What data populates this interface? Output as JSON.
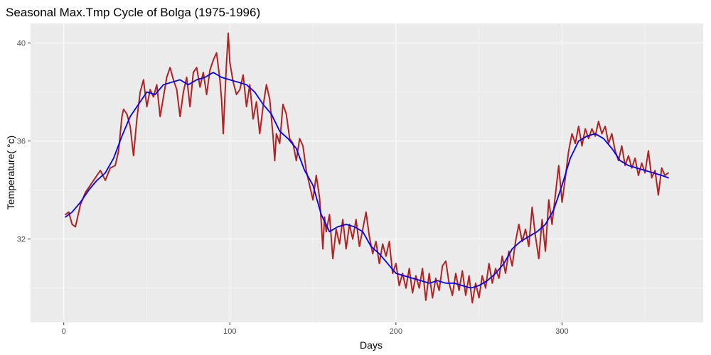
{
  "chart_data": {
    "type": "line",
    "title": "Seasonal Max.Tmp Cycle of Bolga (1975-1996)",
    "xlabel": "Days",
    "ylabel": "Temperature( °c)",
    "xlim": [
      -20,
      385
    ],
    "ylim": [
      28.6,
      40.8
    ],
    "x_ticks": [
      0,
      100,
      200,
      300
    ],
    "y_ticks": [
      32,
      36,
      40
    ],
    "grid": true,
    "series": [
      {
        "color": "#b22222",
        "role": "daily",
        "points": [
          [
            1,
            33.0
          ],
          [
            3,
            33.1
          ],
          [
            5,
            32.6
          ],
          [
            7,
            32.5
          ],
          [
            10,
            33.4
          ],
          [
            13,
            33.9
          ],
          [
            16,
            34.2
          ],
          [
            19,
            34.5
          ],
          [
            22,
            34.8
          ],
          [
            25,
            34.4
          ],
          [
            28,
            34.9
          ],
          [
            31,
            35.0
          ],
          [
            33,
            35.6
          ],
          [
            34,
            36.3
          ],
          [
            35,
            37.0
          ],
          [
            36,
            37.3
          ],
          [
            38,
            37.1
          ],
          [
            40,
            36.6
          ],
          [
            42,
            35.4
          ],
          [
            44,
            36.9
          ],
          [
            46,
            38.0
          ],
          [
            48,
            38.5
          ],
          [
            50,
            37.4
          ],
          [
            52,
            38.1
          ],
          [
            54,
            37.8
          ],
          [
            56,
            38.3
          ],
          [
            58,
            37.0
          ],
          [
            60,
            37.8
          ],
          [
            62,
            38.6
          ],
          [
            64,
            39.0
          ],
          [
            66,
            38.5
          ],
          [
            68,
            38.1
          ],
          [
            70,
            37.0
          ],
          [
            72,
            38.0
          ],
          [
            74,
            38.6
          ],
          [
            76,
            37.4
          ],
          [
            78,
            38.8
          ],
          [
            80,
            39.0
          ],
          [
            82,
            38.2
          ],
          [
            84,
            38.8
          ],
          [
            86,
            37.9
          ],
          [
            88,
            38.9
          ],
          [
            90,
            39.3
          ],
          [
            92,
            39.6
          ],
          [
            94,
            38.5
          ],
          [
            95,
            37.7
          ],
          [
            96,
            36.3
          ],
          [
            97,
            37.8
          ],
          [
            98,
            39.2
          ],
          [
            99,
            40.4
          ],
          [
            100,
            39.2
          ],
          [
            102,
            38.4
          ],
          [
            104,
            37.9
          ],
          [
            106,
            38.1
          ],
          [
            108,
            38.7
          ],
          [
            110,
            37.4
          ],
          [
            112,
            38.3
          ],
          [
            114,
            36.9
          ],
          [
            116,
            37.6
          ],
          [
            118,
            36.3
          ],
          [
            120,
            37.4
          ],
          [
            122,
            38.3
          ],
          [
            124,
            37.7
          ],
          [
            126,
            36.2
          ],
          [
            127,
            35.2
          ],
          [
            128,
            36.3
          ],
          [
            130,
            35.9
          ],
          [
            132,
            37.5
          ],
          [
            134,
            37.1
          ],
          [
            136,
            36.1
          ],
          [
            138,
            35.9
          ],
          [
            140,
            35.2
          ],
          [
            142,
            36.1
          ],
          [
            144,
            35.8
          ],
          [
            146,
            34.8
          ],
          [
            148,
            34.2
          ],
          [
            150,
            33.6
          ],
          [
            152,
            34.6
          ],
          [
            154,
            33.7
          ],
          [
            155,
            32.7
          ],
          [
            156,
            31.6
          ],
          [
            157,
            32.9
          ],
          [
            158,
            32.3
          ],
          [
            160,
            33.0
          ],
          [
            162,
            31.2
          ],
          [
            164,
            32.4
          ],
          [
            166,
            31.8
          ],
          [
            168,
            32.8
          ],
          [
            170,
            31.6
          ],
          [
            172,
            32.6
          ],
          [
            174,
            32.0
          ],
          [
            176,
            32.8
          ],
          [
            178,
            31.7
          ],
          [
            180,
            32.4
          ],
          [
            182,
            33.1
          ],
          [
            184,
            32.1
          ],
          [
            186,
            31.4
          ],
          [
            188,
            31.9
          ],
          [
            190,
            31.0
          ],
          [
            192,
            31.8
          ],
          [
            194,
            31.3
          ],
          [
            196,
            31.9
          ],
          [
            198,
            30.6
          ],
          [
            200,
            31.0
          ],
          [
            202,
            30.1
          ],
          [
            204,
            30.6
          ],
          [
            206,
            30.0
          ],
          [
            208,
            30.8
          ],
          [
            210,
            29.8
          ],
          [
            212,
            30.5
          ],
          [
            214,
            30.0
          ],
          [
            216,
            30.8
          ],
          [
            218,
            29.5
          ],
          [
            220,
            30.6
          ],
          [
            222,
            29.6
          ],
          [
            224,
            30.4
          ],
          [
            226,
            29.9
          ],
          [
            228,
            30.9
          ],
          [
            230,
            31.1
          ],
          [
            232,
            30.2
          ],
          [
            234,
            29.7
          ],
          [
            236,
            30.6
          ],
          [
            238,
            29.9
          ],
          [
            240,
            30.7
          ],
          [
            242,
            29.7
          ],
          [
            244,
            30.5
          ],
          [
            246,
            29.4
          ],
          [
            248,
            30.2
          ],
          [
            250,
            29.6
          ],
          [
            252,
            30.5
          ],
          [
            254,
            30.0
          ],
          [
            256,
            31.0
          ],
          [
            258,
            30.2
          ],
          [
            260,
            30.8
          ],
          [
            262,
            30.4
          ],
          [
            264,
            31.3
          ],
          [
            266,
            30.6
          ],
          [
            268,
            31.5
          ],
          [
            270,
            30.9
          ],
          [
            272,
            31.9
          ],
          [
            274,
            32.6
          ],
          [
            276,
            31.9
          ],
          [
            278,
            32.4
          ],
          [
            280,
            31.7
          ],
          [
            282,
            33.3
          ],
          [
            284,
            32.1
          ],
          [
            286,
            31.2
          ],
          [
            288,
            32.8
          ],
          [
            290,
            31.5
          ],
          [
            292,
            33.6
          ],
          [
            294,
            32.6
          ],
          [
            296,
            33.8
          ],
          [
            298,
            35.0
          ],
          [
            300,
            33.5
          ],
          [
            302,
            34.5
          ],
          [
            304,
            35.6
          ],
          [
            306,
            36.3
          ],
          [
            308,
            35.9
          ],
          [
            310,
            36.6
          ],
          [
            312,
            35.8
          ],
          [
            314,
            36.5
          ],
          [
            316,
            36.1
          ],
          [
            318,
            36.5
          ],
          [
            320,
            36.2
          ],
          [
            322,
            36.8
          ],
          [
            324,
            36.3
          ],
          [
            326,
            36.6
          ],
          [
            328,
            35.9
          ],
          [
            330,
            36.3
          ],
          [
            332,
            35.6
          ],
          [
            334,
            35.2
          ],
          [
            336,
            35.8
          ],
          [
            338,
            35.0
          ],
          [
            340,
            35.4
          ],
          [
            342,
            34.9
          ],
          [
            344,
            35.3
          ],
          [
            346,
            34.6
          ],
          [
            348,
            35.1
          ],
          [
            350,
            34.7
          ],
          [
            352,
            35.6
          ],
          [
            354,
            34.5
          ],
          [
            356,
            34.8
          ],
          [
            358,
            33.8
          ],
          [
            360,
            34.9
          ],
          [
            362,
            34.6
          ],
          [
            364,
            34.7
          ]
        ]
      },
      {
        "color": "#0000ff",
        "role": "smoothed",
        "points": [
          [
            1,
            32.9
          ],
          [
            5,
            33.1
          ],
          [
            10,
            33.5
          ],
          [
            15,
            34.0
          ],
          [
            20,
            34.4
          ],
          [
            25,
            34.7
          ],
          [
            30,
            35.3
          ],
          [
            35,
            36.2
          ],
          [
            40,
            37.0
          ],
          [
            45,
            37.5
          ],
          [
            50,
            38.0
          ],
          [
            55,
            37.9
          ],
          [
            60,
            38.3
          ],
          [
            65,
            38.4
          ],
          [
            70,
            38.5
          ],
          [
            75,
            38.3
          ],
          [
            80,
            38.5
          ],
          [
            85,
            38.6
          ],
          [
            90,
            38.8
          ],
          [
            95,
            38.6
          ],
          [
            100,
            38.5
          ],
          [
            105,
            38.4
          ],
          [
            110,
            38.3
          ],
          [
            115,
            38.0
          ],
          [
            120,
            37.5
          ],
          [
            125,
            37.1
          ],
          [
            130,
            36.4
          ],
          [
            135,
            36.1
          ],
          [
            140,
            35.7
          ],
          [
            145,
            34.8
          ],
          [
            150,
            34.2
          ],
          [
            155,
            33.0
          ],
          [
            160,
            32.3
          ],
          [
            165,
            32.5
          ],
          [
            170,
            32.6
          ],
          [
            175,
            32.5
          ],
          [
            180,
            32.3
          ],
          [
            185,
            31.7
          ],
          [
            190,
            31.4
          ],
          [
            195,
            31.0
          ],
          [
            200,
            30.6
          ],
          [
            205,
            30.5
          ],
          [
            210,
            30.4
          ],
          [
            215,
            30.3
          ],
          [
            220,
            30.2
          ],
          [
            225,
            30.3
          ],
          [
            230,
            30.2
          ],
          [
            235,
            30.2
          ],
          [
            240,
            30.1
          ],
          [
            245,
            30.0
          ],
          [
            250,
            30.1
          ],
          [
            255,
            30.3
          ],
          [
            260,
            30.6
          ],
          [
            265,
            31.0
          ],
          [
            270,
            31.6
          ],
          [
            275,
            31.9
          ],
          [
            280,
            32.1
          ],
          [
            285,
            32.3
          ],
          [
            290,
            32.6
          ],
          [
            295,
            33.2
          ],
          [
            300,
            34.2
          ],
          [
            305,
            35.3
          ],
          [
            310,
            36.0
          ],
          [
            315,
            36.2
          ],
          [
            320,
            36.3
          ],
          [
            325,
            36.1
          ],
          [
            330,
            35.7
          ],
          [
            335,
            35.2
          ],
          [
            340,
            35.0
          ],
          [
            345,
            34.9
          ],
          [
            350,
            34.8
          ],
          [
            355,
            34.7
          ],
          [
            360,
            34.6
          ],
          [
            364,
            34.5
          ]
        ]
      }
    ]
  }
}
